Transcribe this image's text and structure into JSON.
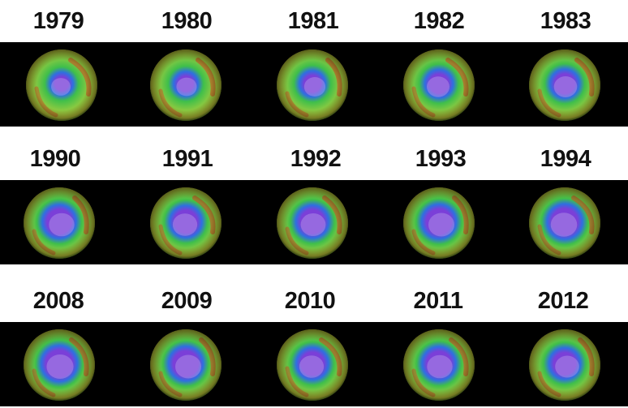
{
  "rows": [
    {
      "years": [
        "1979",
        "1980",
        "1981",
        "1982",
        "1983"
      ]
    },
    {
      "years": [
        "1990",
        "1991",
        "1992",
        "1993",
        "1994"
      ]
    },
    {
      "years": [
        "2008",
        "2009",
        "2010",
        "2011",
        "2012"
      ]
    }
  ],
  "colors": {
    "band": "#000000",
    "low_ozone": "#7b3fd8",
    "mid_low": "#2f6fe0",
    "mid": "#3fbf4a",
    "high": "#c8d23a",
    "very_high": "#d2451e"
  }
}
